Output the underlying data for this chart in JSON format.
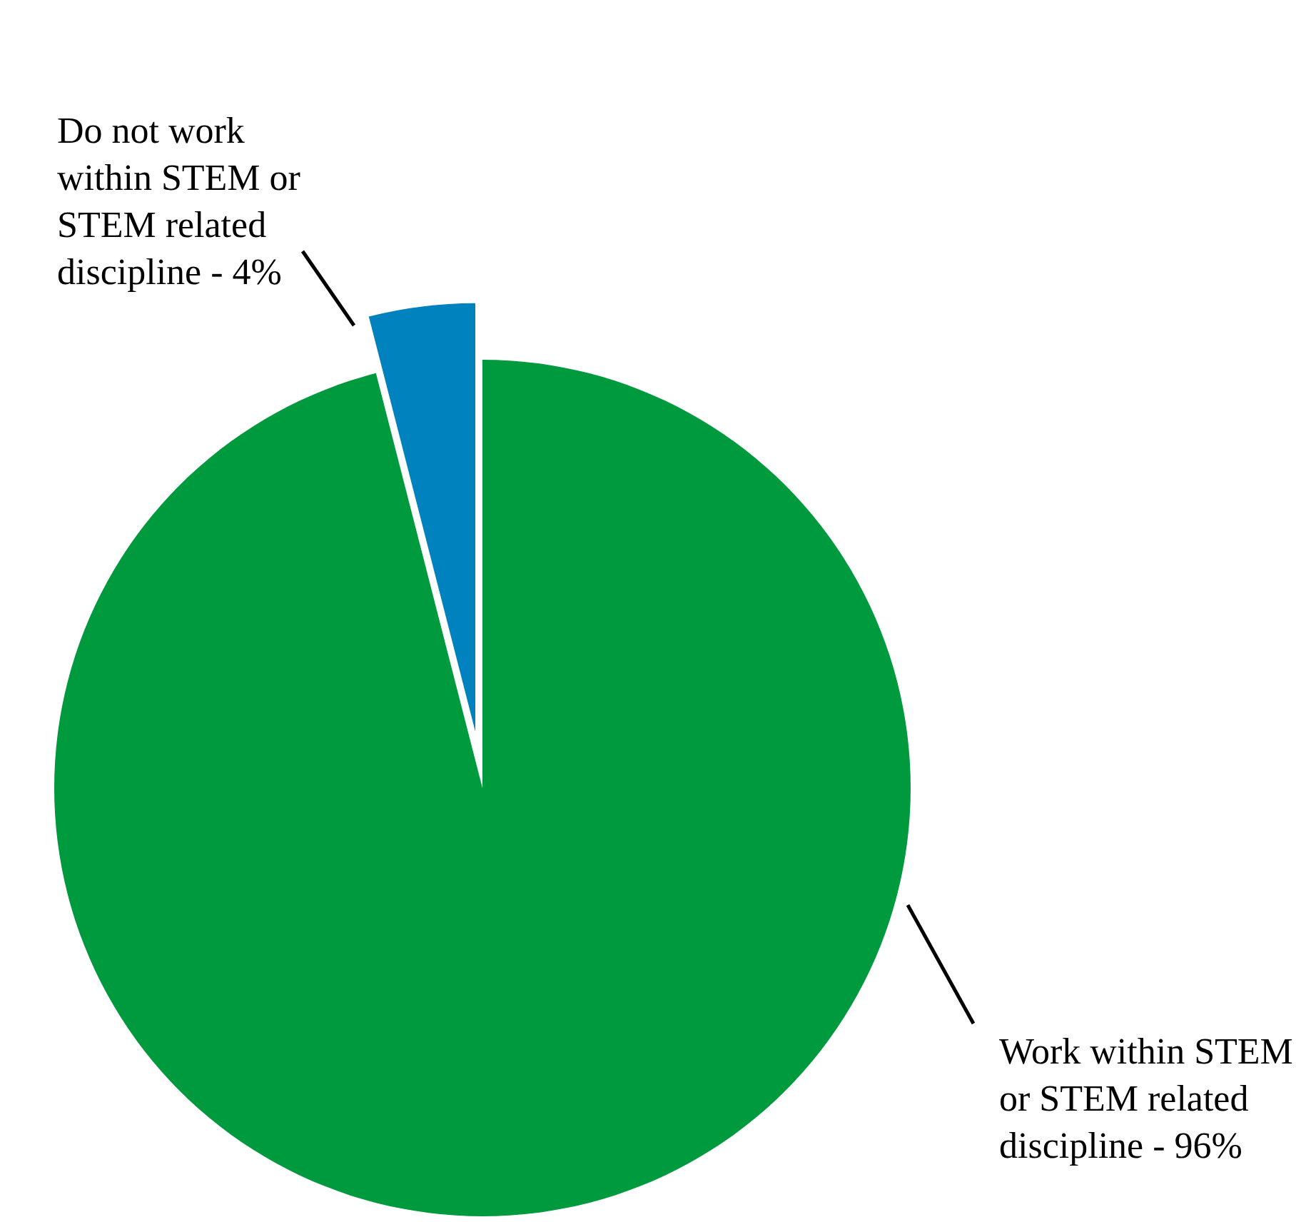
{
  "chart_data": {
    "type": "pie",
    "categories": [
      "Work within STEM or STEM related discipline - 96%",
      "Do not work within STEM or STEM related discipline - 4%"
    ],
    "values": [
      96,
      4
    ],
    "colors": [
      "#009a3e",
      "#0082be"
    ]
  }
}
